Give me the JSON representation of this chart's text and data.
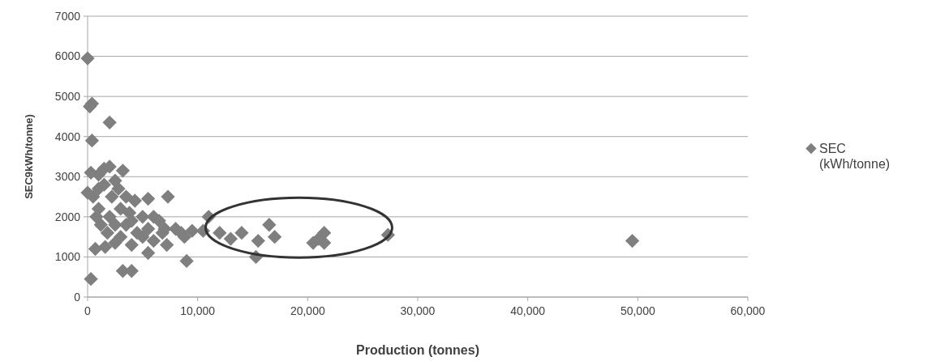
{
  "chart_data": {
    "type": "scatter",
    "xlabel": "Production (tonnes)",
    "ylabel": "SEC9kWh/tonne)",
    "xlim": [
      0,
      60000
    ],
    "xticks": [
      {
        "value": 0,
        "label": "0"
      },
      {
        "value": 10000,
        "label": "10,000"
      },
      {
        "value": 20000,
        "label": "20,000"
      },
      {
        "value": 30000,
        "label": "30,000"
      },
      {
        "value": 40000,
        "label": "40,000"
      },
      {
        "value": 50000,
        "label": "50,000"
      },
      {
        "value": 60000,
        "label": "60,000"
      }
    ],
    "ylim": [
      0,
      7000
    ],
    "yticks": [
      0,
      1000,
      2000,
      3000,
      4000,
      5000,
      6000,
      7000
    ],
    "grid": "y",
    "legend": "right",
    "marker": "diamond",
    "series": [
      {
        "name": "SEC (kWh/tonne)",
        "color": "#7f7f7f",
        "x": [
          0,
          200,
          400,
          2000,
          400,
          300,
          1000,
          1500,
          2000,
          3200,
          2500,
          0,
          500,
          1000,
          1500,
          7300,
          4300,
          5500,
          3000,
          1000,
          2000,
          2500,
          3500,
          4000,
          5000,
          6000,
          6500,
          7000,
          8000,
          8500,
          9500,
          11000,
          10500,
          12000,
          13000,
          14000,
          15500,
          16500,
          17000,
          20500,
          21000,
          21500,
          21500,
          27300,
          49500,
          15300,
          9000,
          5500,
          3200,
          4000,
          300,
          700,
          1600,
          2500,
          4000,
          6000,
          7200,
          1200,
          1800,
          3000,
          4500,
          5500,
          2200,
          3500,
          800,
          8800,
          6800,
          5000,
          3800,
          2800
        ],
        "values": [
          5950,
          4750,
          4820,
          4350,
          3900,
          3100,
          3050,
          3200,
          3250,
          3150,
          2900,
          2600,
          2500,
          2700,
          2800,
          2500,
          2400,
          2450,
          2200,
          2200,
          2000,
          1800,
          1800,
          1900,
          2000,
          2000,
          1900,
          1700,
          1700,
          1600,
          1650,
          2000,
          1650,
          1600,
          1450,
          1600,
          1400,
          1800,
          1500,
          1350,
          1450,
          1600,
          1350,
          1550,
          1400,
          1000,
          900,
          1100,
          650,
          650,
          450,
          1200,
          1250,
          1350,
          1300,
          1400,
          1300,
          1800,
          1600,
          1500,
          1600,
          1700,
          2500,
          2500,
          2000,
          1500,
          1600,
          1500,
          2100,
          2700
        ]
      }
    ],
    "legend_title": null
  }
}
